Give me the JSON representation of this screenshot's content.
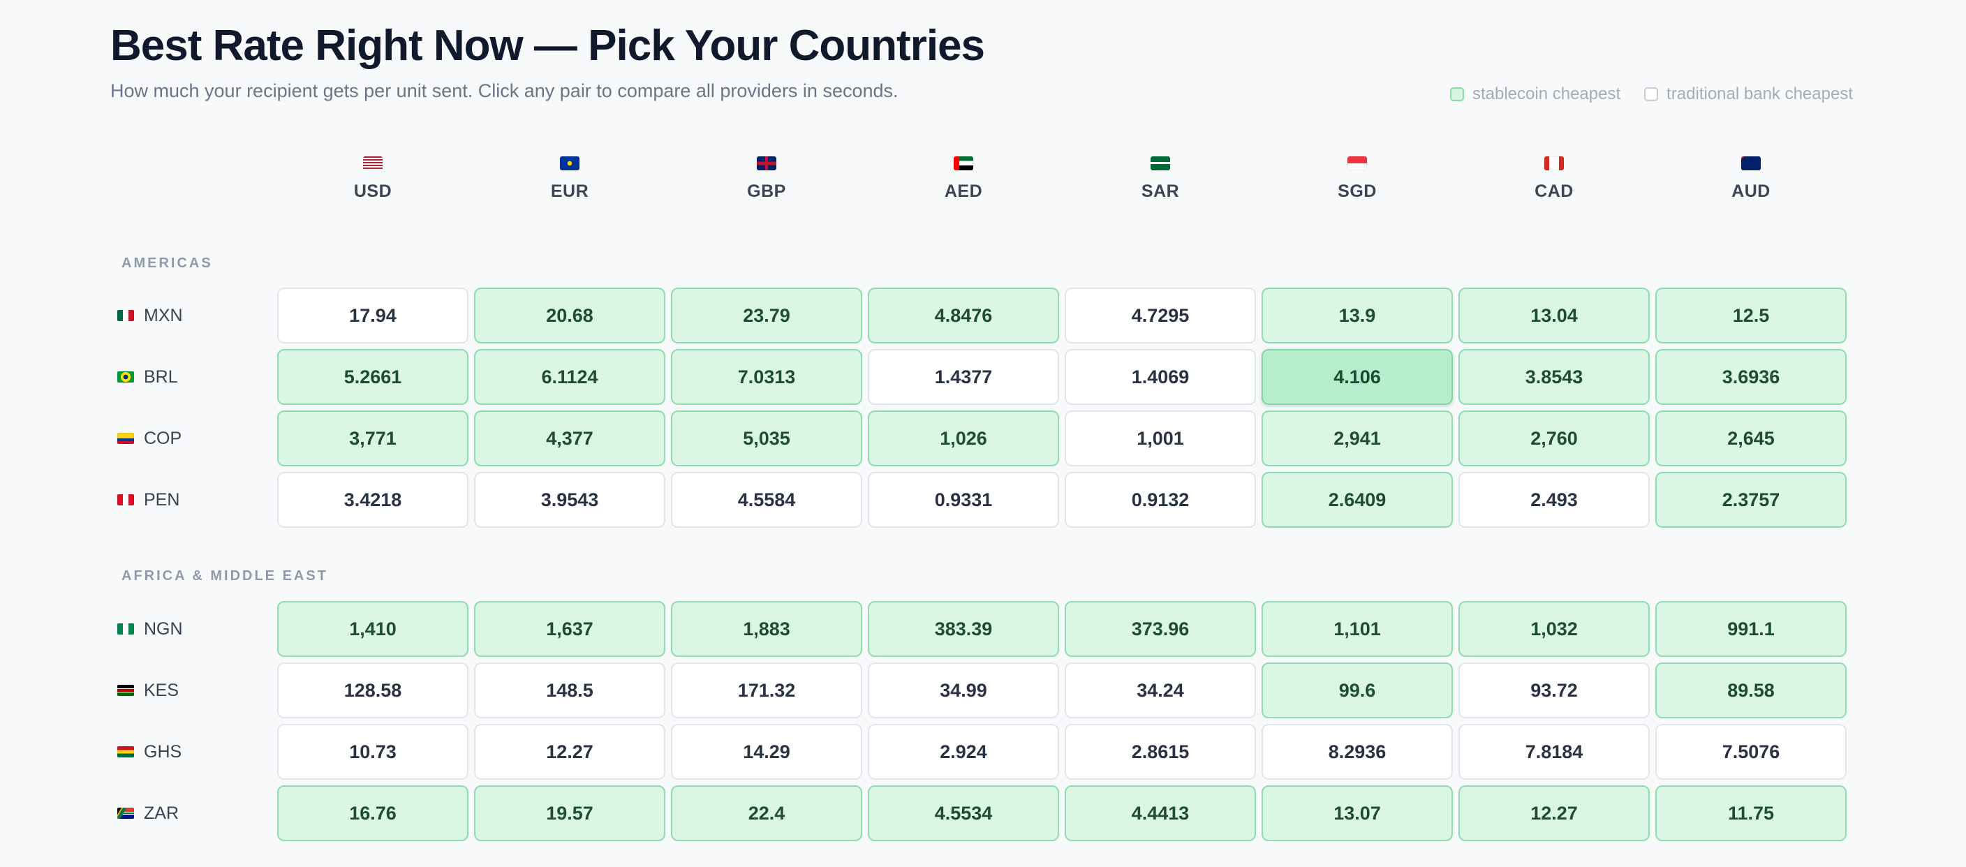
{
  "page": {
    "title": "Best Rate Right Now — Pick Your Countries",
    "subtitle": "How much your recipient gets per unit sent. Click any pair to compare all providers in seconds."
  },
  "legend": {
    "stablecoin_label": "stablecoin cheapest",
    "bank_label": "traditional bank cheapest",
    "stablecoin_color": "#d7f5e2",
    "bank_color": "#ffffff"
  },
  "columns": [
    {
      "code": "USD",
      "flag": "us-flag"
    },
    {
      "code": "EUR",
      "flag": "eu-flag"
    },
    {
      "code": "GBP",
      "flag": "uk-flag"
    },
    {
      "code": "AED",
      "flag": "uae-flag"
    },
    {
      "code": "SAR",
      "flag": "saudi-flag"
    },
    {
      "code": "SGD",
      "flag": "singapore-flag"
    },
    {
      "code": "CAD",
      "flag": "canada-flag"
    },
    {
      "code": "AUD",
      "flag": "australia-flag"
    }
  ],
  "groups": [
    {
      "region": "AMERICAS",
      "rows": [
        {
          "code": "MXN",
          "flag": "mexico-flag",
          "values": [
            "17.94",
            "20.68",
            "23.79",
            "4.8476",
            "4.7295",
            "13.9",
            "13.04",
            "12.5"
          ],
          "stablecoin_cheapest": [
            false,
            true,
            true,
            true,
            false,
            true,
            true,
            true
          ]
        },
        {
          "code": "BRL",
          "flag": "brazil-flag",
          "values": [
            "5.2661",
            "6.1124",
            "7.0313",
            "1.4377",
            "1.4069",
            "4.106",
            "3.8543",
            "3.6936"
          ],
          "stablecoin_cheapest": [
            true,
            true,
            true,
            false,
            false,
            true,
            true,
            true
          ],
          "selected_column": "SGD"
        },
        {
          "code": "COP",
          "flag": "colombia-flag",
          "values": [
            "3,771",
            "4,377",
            "5,035",
            "1,026",
            "1,001",
            "2,941",
            "2,760",
            "2,645"
          ],
          "stablecoin_cheapest": [
            true,
            true,
            true,
            true,
            false,
            true,
            true,
            true
          ]
        },
        {
          "code": "PEN",
          "flag": "peru-flag",
          "values": [
            "3.4218",
            "3.9543",
            "4.5584",
            "0.9331",
            "0.9132",
            "2.6409",
            "2.493",
            "2.3757"
          ],
          "stablecoin_cheapest": [
            false,
            false,
            false,
            false,
            false,
            true,
            false,
            true
          ]
        }
      ]
    },
    {
      "region": "AFRICA & MIDDLE EAST",
      "rows": [
        {
          "code": "NGN",
          "flag": "nigeria-flag",
          "values": [
            "1,410",
            "1,637",
            "1,883",
            "383.39",
            "373.96",
            "1,101",
            "1,032",
            "991.1"
          ],
          "stablecoin_cheapest": [
            true,
            true,
            true,
            true,
            true,
            true,
            true,
            true
          ]
        },
        {
          "code": "KES",
          "flag": "kenya-flag",
          "values": [
            "128.58",
            "148.5",
            "171.32",
            "34.99",
            "34.24",
            "99.6",
            "93.72",
            "89.58"
          ],
          "stablecoin_cheapest": [
            false,
            false,
            false,
            false,
            false,
            true,
            false,
            true
          ]
        },
        {
          "code": "GHS",
          "flag": "ghana-flag",
          "values": [
            "10.73",
            "12.27",
            "14.29",
            "2.924",
            "2.8615",
            "8.2936",
            "7.8184",
            "7.5076"
          ],
          "stablecoin_cheapest": [
            false,
            false,
            false,
            false,
            false,
            false,
            false,
            false
          ]
        },
        {
          "code": "ZAR",
          "flag": "south-africa-flag",
          "values": [
            "16.76",
            "19.57",
            "22.4",
            "4.5534",
            "4.4413",
            "13.07",
            "12.27",
            "11.75"
          ],
          "stablecoin_cheapest": [
            true,
            true,
            true,
            true,
            true,
            true,
            true,
            true
          ]
        }
      ]
    }
  ]
}
